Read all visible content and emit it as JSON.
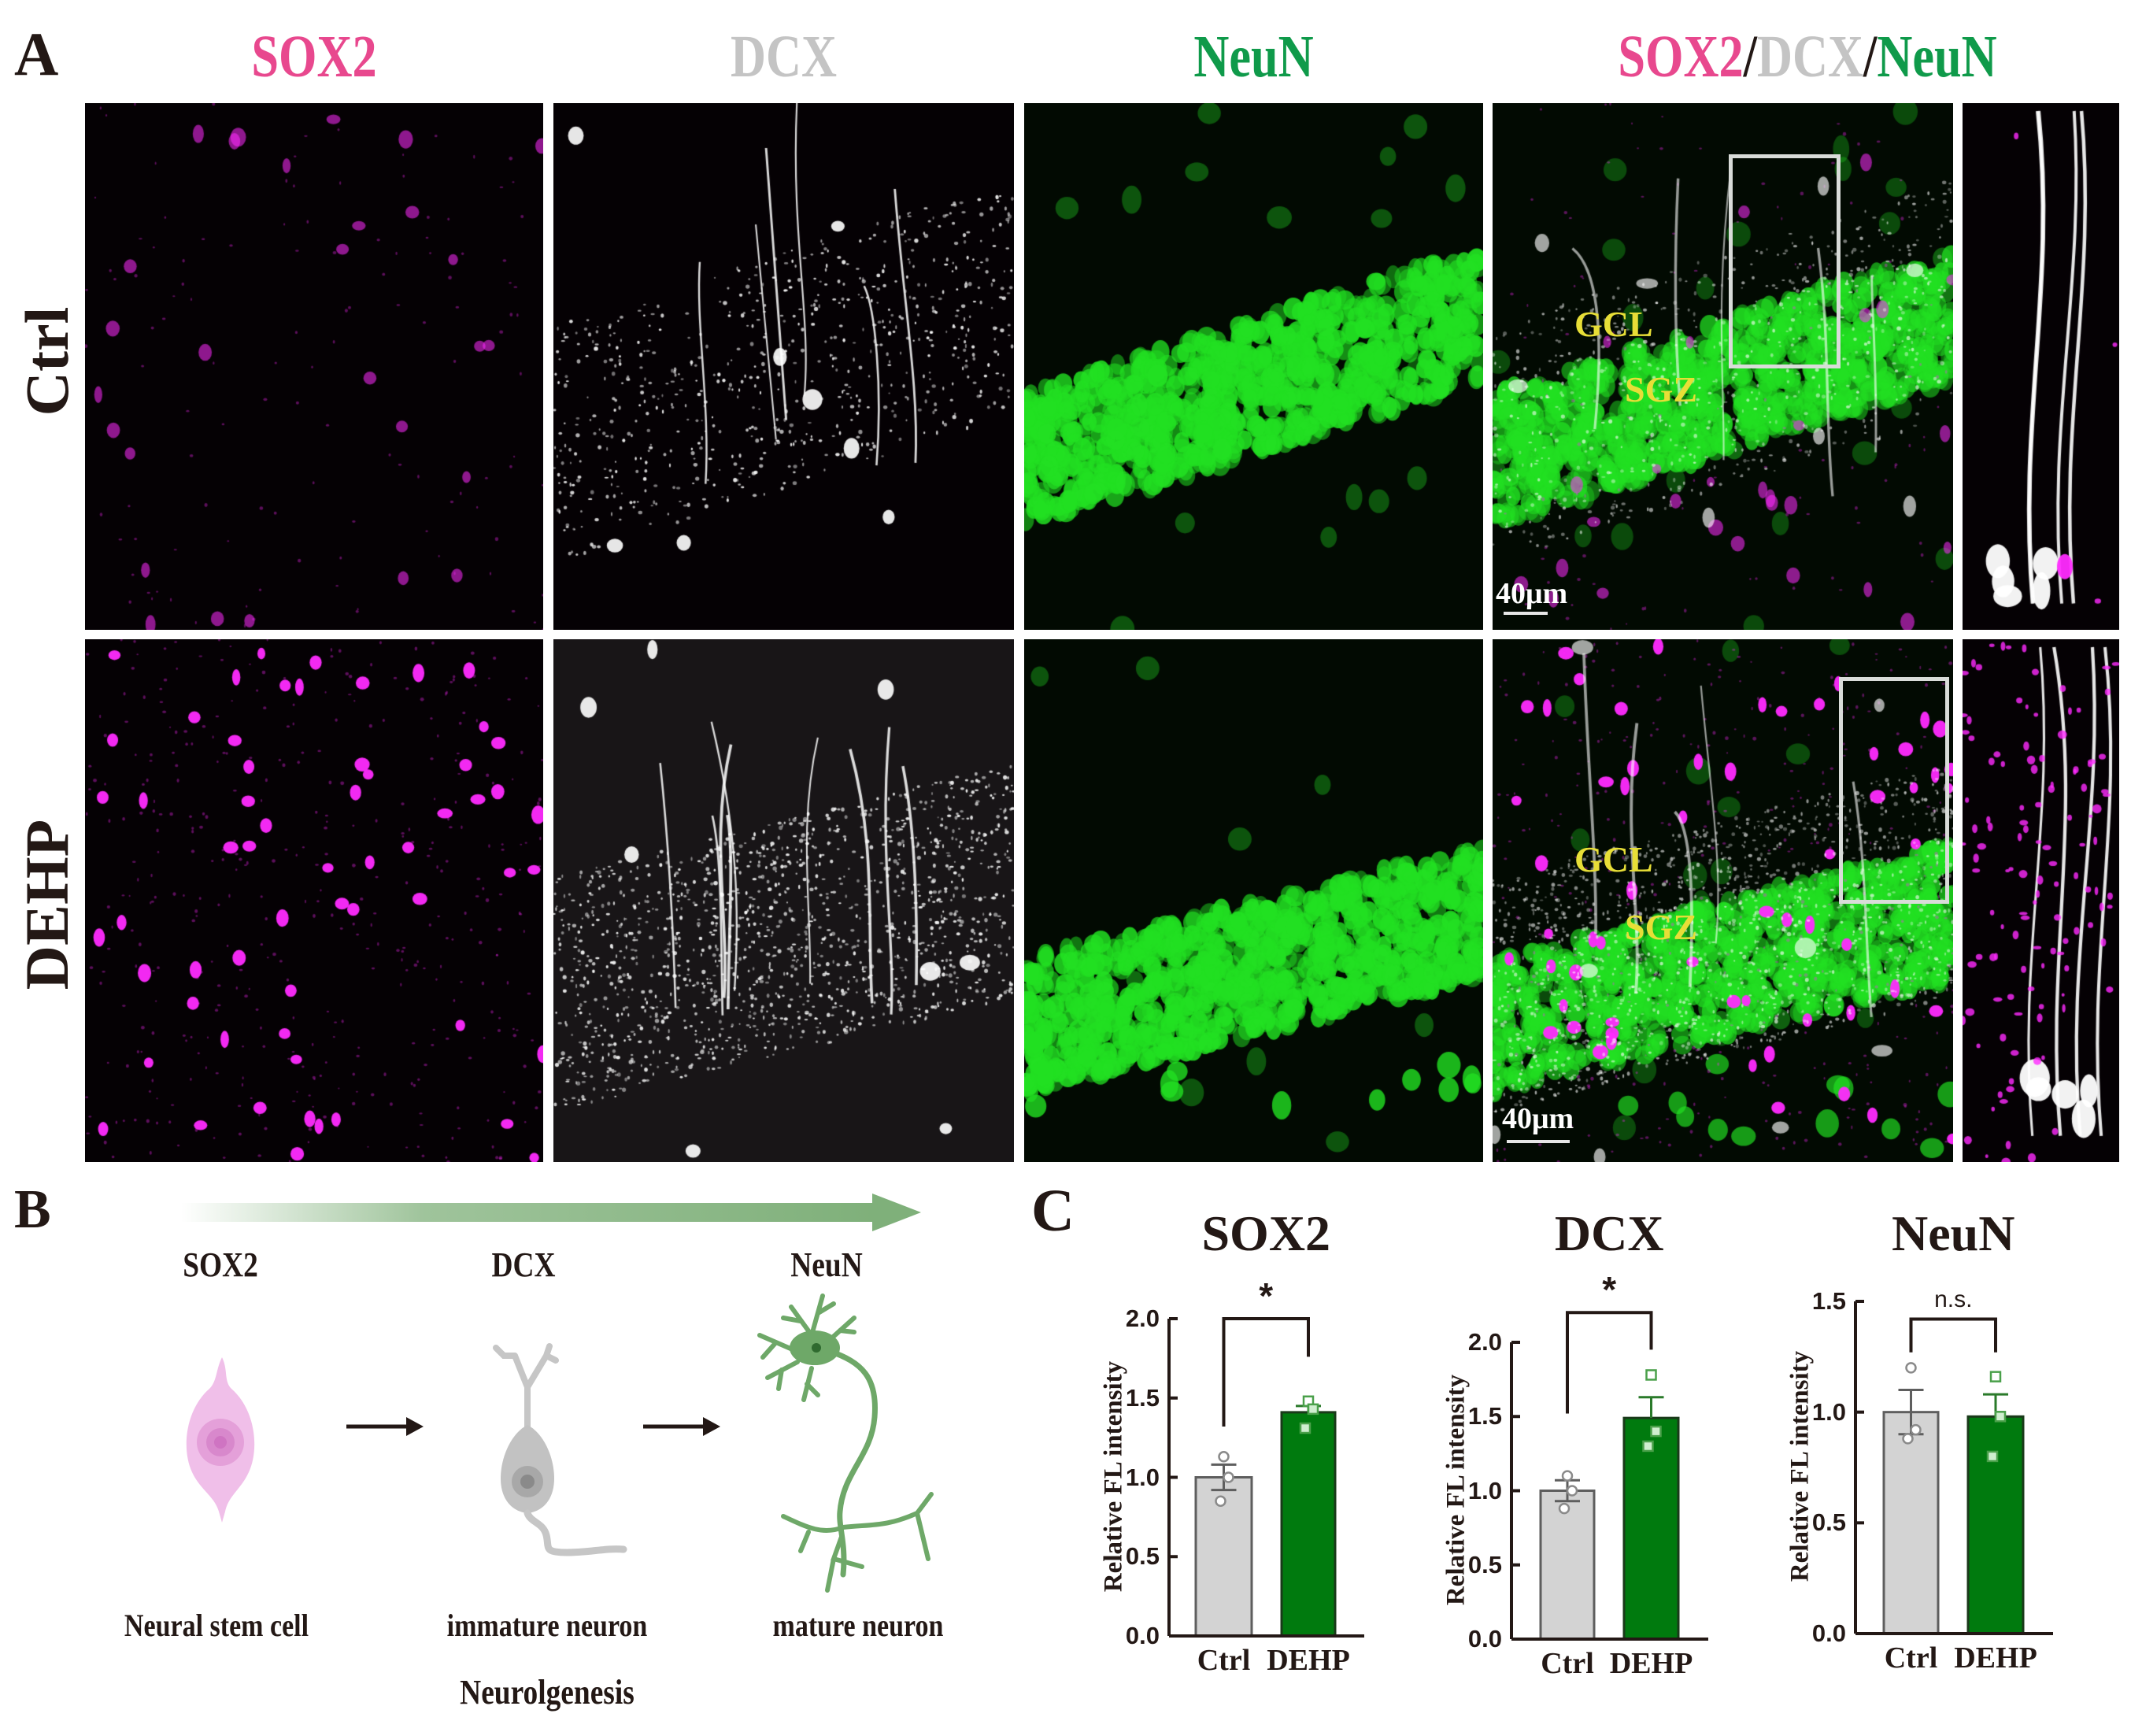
{
  "figure": {
    "panel_A": {
      "letter": "A",
      "column_titles": [
        {
          "parts": [
            {
              "text": "SOX2",
              "color": "#e8488e"
            }
          ]
        },
        {
          "parts": [
            {
              "text": "DCX",
              "color": "#c4c4c4"
            }
          ]
        },
        {
          "parts": [
            {
              "text": "NeuN",
              "color": "#0f9a4a"
            }
          ]
        },
        {
          "parts": [
            {
              "text": "SOX2",
              "color": "#e8488e"
            },
            {
              "text": "/",
              "color": "#231815"
            },
            {
              "text": "DCX",
              "color": "#c4c4c4"
            },
            {
              "text": "/",
              "color": "#231815"
            },
            {
              "text": "NeuN",
              "color": "#0f9a4a"
            }
          ]
        }
      ],
      "row_titles": [
        "Ctrl",
        "DEHP"
      ],
      "region_labels": {
        "gcl": "GCL",
        "sgz": "SGZ"
      },
      "scale_bar": "40μm",
      "channel_colors": {
        "sox2": "#ff2bff",
        "dcx": "#ffffff",
        "neun": "#22e022"
      }
    },
    "panel_B": {
      "letter": "B",
      "markers": [
        "SOX2",
        "DCX",
        "NeuN"
      ],
      "cell_captions": [
        "Neural stem cell",
        "immature neuron",
        "mature neuron"
      ],
      "process_label": "Neurolgenesis",
      "progress_arrow_color": "#7fb07a",
      "cell_colors": {
        "stem": "#eebbe6",
        "immature": "#c8c8c8",
        "mature": "#6ea868"
      }
    },
    "panel_C": {
      "letter": "C"
    }
  },
  "chart_data": [
    {
      "type": "bar",
      "title": "SOX2",
      "categories": [
        "Ctrl",
        "DEHP"
      ],
      "values": [
        1.0,
        1.41
      ],
      "sem": [
        0.08,
        0.04
      ],
      "points": [
        [
          1.13,
          1.0,
          0.85
        ],
        [
          1.48,
          1.43,
          1.31
        ]
      ],
      "bar_colors": [
        "#d3d3d3",
        "#007a0e"
      ],
      "xlabel": "",
      "ylabel": "Relative FL intensity",
      "ylim": [
        0,
        2.0
      ],
      "yticks": [
        "0.0",
        "0.5",
        "1.0",
        "1.5",
        "2.0"
      ],
      "significance": "*",
      "bracket": {
        "left_bottom": 1.32,
        "right_bottom": 1.76,
        "top": 2.0
      },
      "grid": false
    },
    {
      "type": "bar",
      "title": "DCX",
      "categories": [
        "Ctrl",
        "DEHP"
      ],
      "values": [
        1.0,
        1.49
      ],
      "sem": [
        0.07,
        0.14
      ],
      "points": [
        [
          1.1,
          1.0,
          0.88
        ],
        [
          1.78,
          1.4,
          1.3
        ]
      ],
      "bar_colors": [
        "#d3d3d3",
        "#007a0e"
      ],
      "xlabel": "",
      "ylabel": "Relative FL intensity",
      "ylim": [
        0,
        2.0
      ],
      "yticks": [
        "0.0",
        "0.5",
        "1.0",
        "1.5",
        "2.0"
      ],
      "significance": "*",
      "bracket": {
        "left_bottom": 1.52,
        "right_bottom": 1.95,
        "top": 2.2
      },
      "grid": false
    },
    {
      "type": "bar",
      "title": "NeuN",
      "categories": [
        "Ctrl",
        "DEHP"
      ],
      "values": [
        1.0,
        0.98
      ],
      "sem": [
        0.1,
        0.1
      ],
      "points": [
        [
          1.2,
          0.92,
          0.88
        ],
        [
          1.16,
          0.98,
          0.8
        ]
      ],
      "bar_colors": [
        "#d3d3d3",
        "#007a0e"
      ],
      "xlabel": "",
      "ylabel": "Relative FL intensity",
      "ylim": [
        0,
        1.5
      ],
      "yticks": [
        "0.0",
        "0.5",
        "1.0",
        "1.5"
      ],
      "significance": "n.s.",
      "bracket": {
        "left_bottom": 1.27,
        "right_bottom": 1.27,
        "top": 1.42
      },
      "grid": false
    }
  ]
}
